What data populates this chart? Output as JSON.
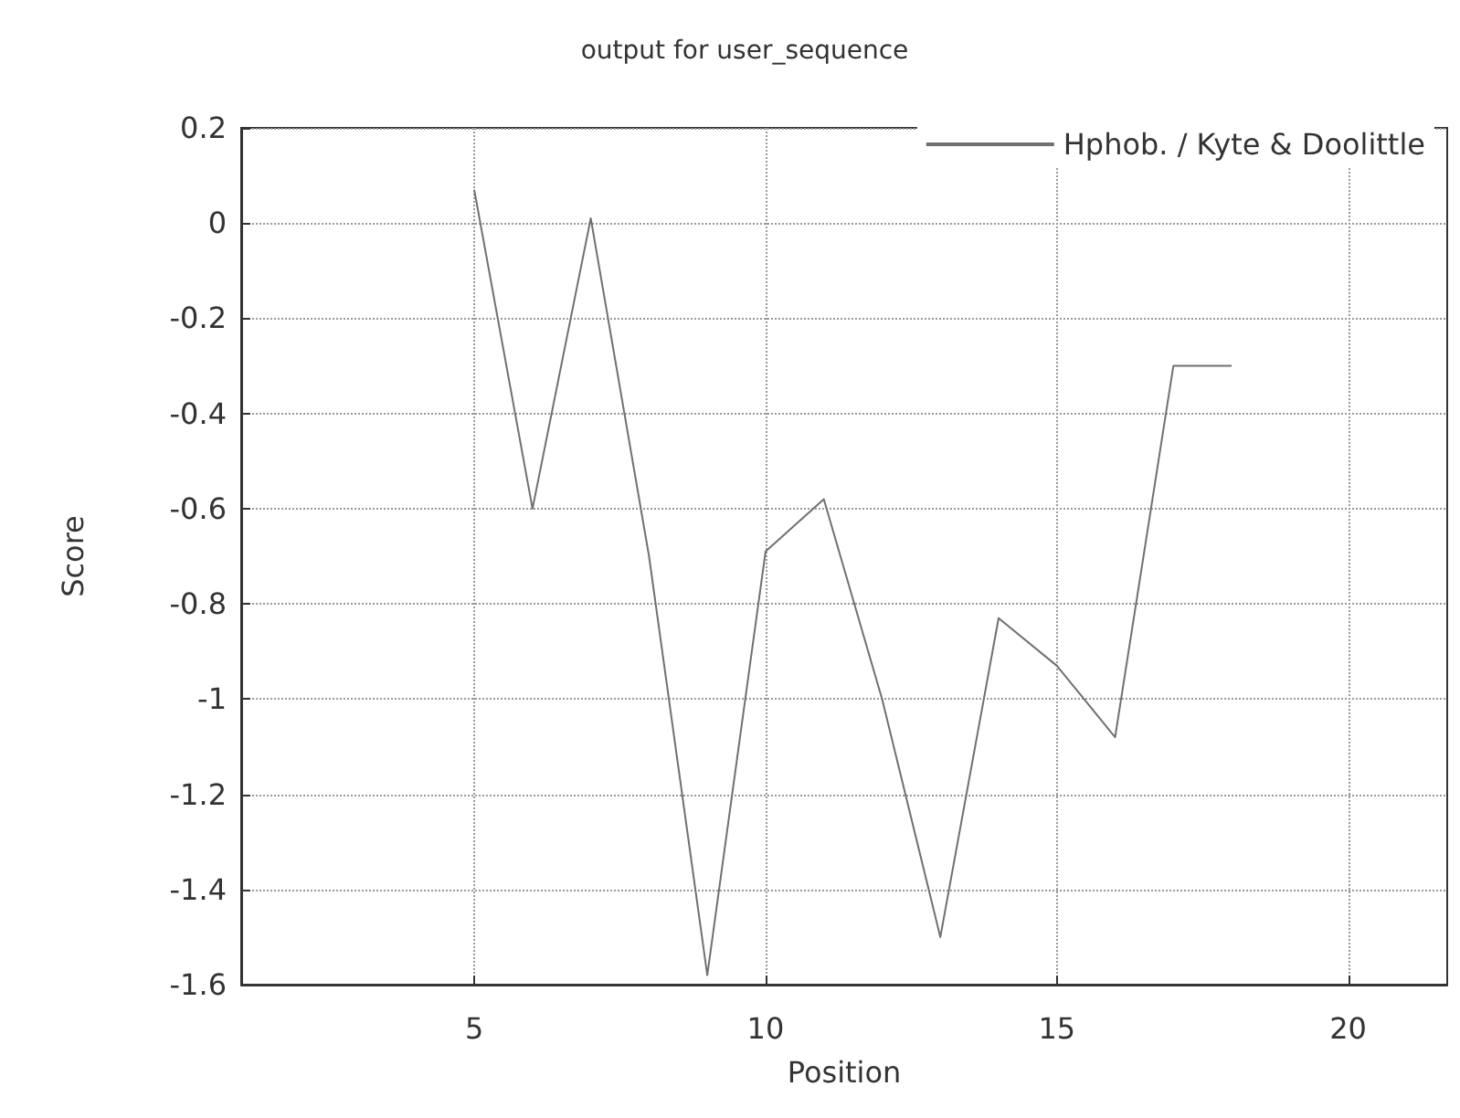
{
  "chart_data": {
    "type": "line",
    "title": "output for user_sequence",
    "xlabel": "Position",
    "ylabel": "Score",
    "x": [
      5,
      6,
      7,
      8,
      9,
      10,
      11,
      12,
      13,
      14,
      15,
      16,
      17,
      18
    ],
    "series": [
      {
        "name": "Hphob. / Kyte & Doolittle",
        "color": "#707070",
        "values": [
          0.07,
          -0.6,
          0.01,
          -0.7,
          -1.58,
          -0.69,
          -0.58,
          -1.0,
          -1.5,
          -0.83,
          -0.93,
          -1.08,
          -0.3,
          -0.3
        ]
      }
    ],
    "xlim": [
      1,
      21.7
    ],
    "xticks": [
      5,
      10,
      15,
      20
    ],
    "ylim": [
      -1.6,
      0.2
    ],
    "yticks": [
      -1.6,
      -1.4,
      -1.2,
      -1,
      -0.8,
      -0.6,
      -0.4,
      -0.2,
      0,
      0.2
    ],
    "grid": true,
    "legend": "top right",
    "marker": "none",
    "line_style": "solid"
  }
}
